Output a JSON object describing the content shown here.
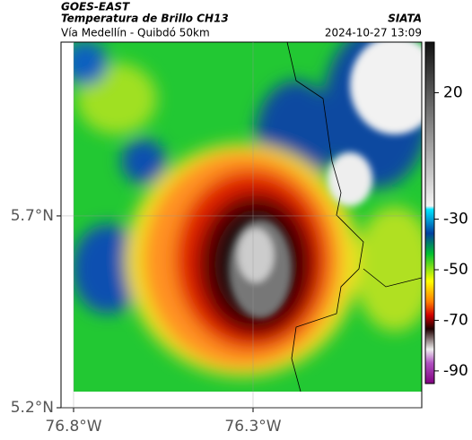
{
  "header": {
    "satellite": "GOES-EAST",
    "product": "Temperatura de Brillo CH13",
    "region": "Vía Medellín - Quibdó 50km",
    "source": "SIATA",
    "datetime": "2024-10-27 13:09"
  },
  "map": {
    "xlim": [
      -76.835,
      -75.83
    ],
    "ylim": [
      5.2,
      6.153
    ],
    "xticks": [
      {
        "value": -76.8,
        "label": "76.8°W"
      },
      {
        "value": -76.3,
        "label": "76.3°W"
      }
    ],
    "yticks": [
      {
        "value": 5.7,
        "label": "5.7°N"
      },
      {
        "value": 5.2,
        "label": "5.2°N"
      }
    ]
  },
  "colorbar": {
    "lim": [
      40,
      -95
    ],
    "ticks": [
      20,
      -30,
      -50,
      -70,
      -90
    ]
  }
}
